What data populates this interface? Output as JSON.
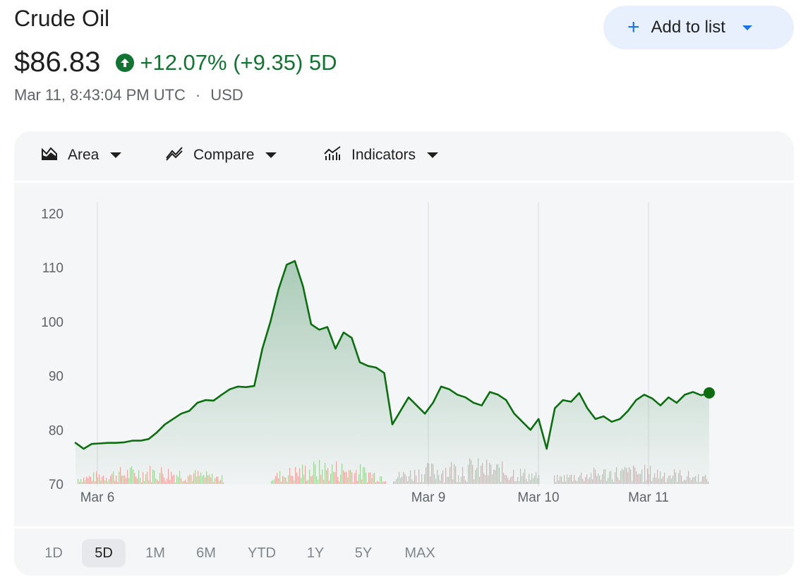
{
  "header": {
    "title": "Crude Oil",
    "price": "$86.83",
    "change": "+12.07% (+9.35) 5D",
    "timestamp": "Mar 11, 8:43:04 PM UTC",
    "separator": "·",
    "currency": "USD"
  },
  "add_button": {
    "label": "Add to list",
    "icon": "plus-icon"
  },
  "toolbar": {
    "area_label": "Area",
    "compare_label": "Compare",
    "indicators_label": "Indicators"
  },
  "ranges": [
    "1D",
    "5D",
    "1M",
    "6M",
    "YTD",
    "1Y",
    "5Y",
    "MAX"
  ],
  "selected_range": "5D",
  "colors": {
    "positive": "#137333",
    "line": "#0d6e11",
    "accent": "#1a73e8",
    "vol_up": "#a8d5a2",
    "vol_down": "#f4a8a8"
  },
  "chart_data": {
    "type": "area",
    "ylim": [
      70,
      122
    ],
    "y_ticks": [
      70,
      80,
      90,
      100,
      110,
      120
    ],
    "x_ticks": [
      "Mar 6",
      "Mar 9",
      "Mar 10",
      "Mar 11"
    ],
    "grid": "vertical lines at date ticks",
    "last_value": 86.83,
    "series": [
      {
        "values": [
          77.6,
          76.5,
          77.4,
          77.5,
          77.6,
          77.6,
          77.7,
          78.0,
          78.0,
          78.3,
          79.5,
          81.0,
          82.0,
          83.0,
          83.5,
          85.0,
          85.5,
          85.4,
          86.5,
          87.5,
          88.0,
          87.9,
          88.1,
          95.0,
          100.0,
          106.0,
          110.5,
          111.2,
          106.5,
          99.5,
          98.5,
          99.0,
          95.0,
          98.0,
          97.0,
          92.5,
          91.8,
          91.5,
          90.5,
          81.0,
          83.5,
          86.0,
          84.5,
          83.0,
          85.0,
          88.0,
          87.5,
          86.5,
          86.0,
          85.0,
          84.5,
          87.0,
          86.5,
          85.5,
          83.0,
          81.5,
          80.0,
          82.0,
          76.5,
          84.0,
          85.5,
          85.2,
          86.8,
          84.0,
          82.0,
          82.5,
          81.5,
          82.0,
          83.5,
          85.5,
          86.5,
          85.8,
          84.5,
          86.0,
          85.0,
          86.5,
          87.0,
          86.4,
          86.83
        ]
      }
    ]
  }
}
